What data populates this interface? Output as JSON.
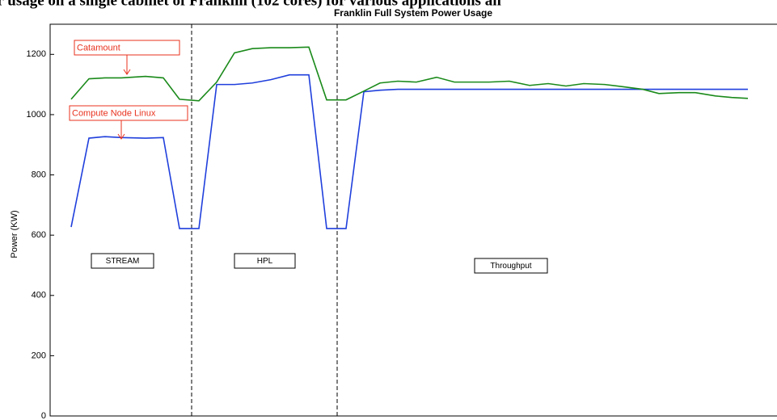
{
  "caption": "er usage on a single cabinet of Franklin (102 cores) for various applications an",
  "chart_data": {
    "type": "line",
    "title": "Franklin Full System Power Usage",
    "ylabel": "Power (KW)",
    "x": [
      26,
      48,
      68,
      88,
      118,
      140,
      160,
      184,
      206,
      228,
      250,
      273,
      296,
      320,
      342,
      366,
      388,
      408,
      430,
      453,
      478,
      500,
      523,
      543,
      568,
      593,
      616,
      638,
      660,
      686,
      710,
      733,
      753,
      778,
      798,
      823,
      843,
      863
    ],
    "xlim": [
      0,
      898
    ],
    "ylim": [
      0,
      1300
    ],
    "yticks": [
      0,
      200,
      400,
      600,
      800,
      1000,
      1200
    ],
    "series": [
      {
        "name": "Compute Node Linux",
        "color": "#1f3fdc",
        "values": [
          627,
          922,
          927,
          924,
          922,
          924,
          622,
          622,
          1100,
          1100,
          1105,
          1116,
          1132,
          1132,
          622,
          622,
          1076,
          1081,
          1084,
          1084,
          1084,
          1084,
          1084,
          1084,
          1084,
          1084,
          1084,
          1084,
          1084,
          1084,
          1084,
          1084,
          1084,
          1084,
          1084,
          1084,
          1084,
          1084
        ]
      },
      {
        "name": "Catamount",
        "color": "#1a8a1a",
        "values": [
          1051,
          1119,
          1122,
          1122,
          1127,
          1122,
          1051,
          1046,
          1108,
          1205,
          1219,
          1222,
          1222,
          1224,
          1049,
          1049,
          1078,
          1105,
          1111,
          1108,
          1124,
          1108,
          1108,
          1108,
          1111,
          1097,
          1103,
          1095,
          1103,
          1100,
          1092,
          1084,
          1070,
          1073,
          1073,
          1062,
          1057,
          1054
        ]
      }
    ],
    "annotations": [
      "STREAM",
      "HPL",
      "Throughput"
    ]
  }
}
